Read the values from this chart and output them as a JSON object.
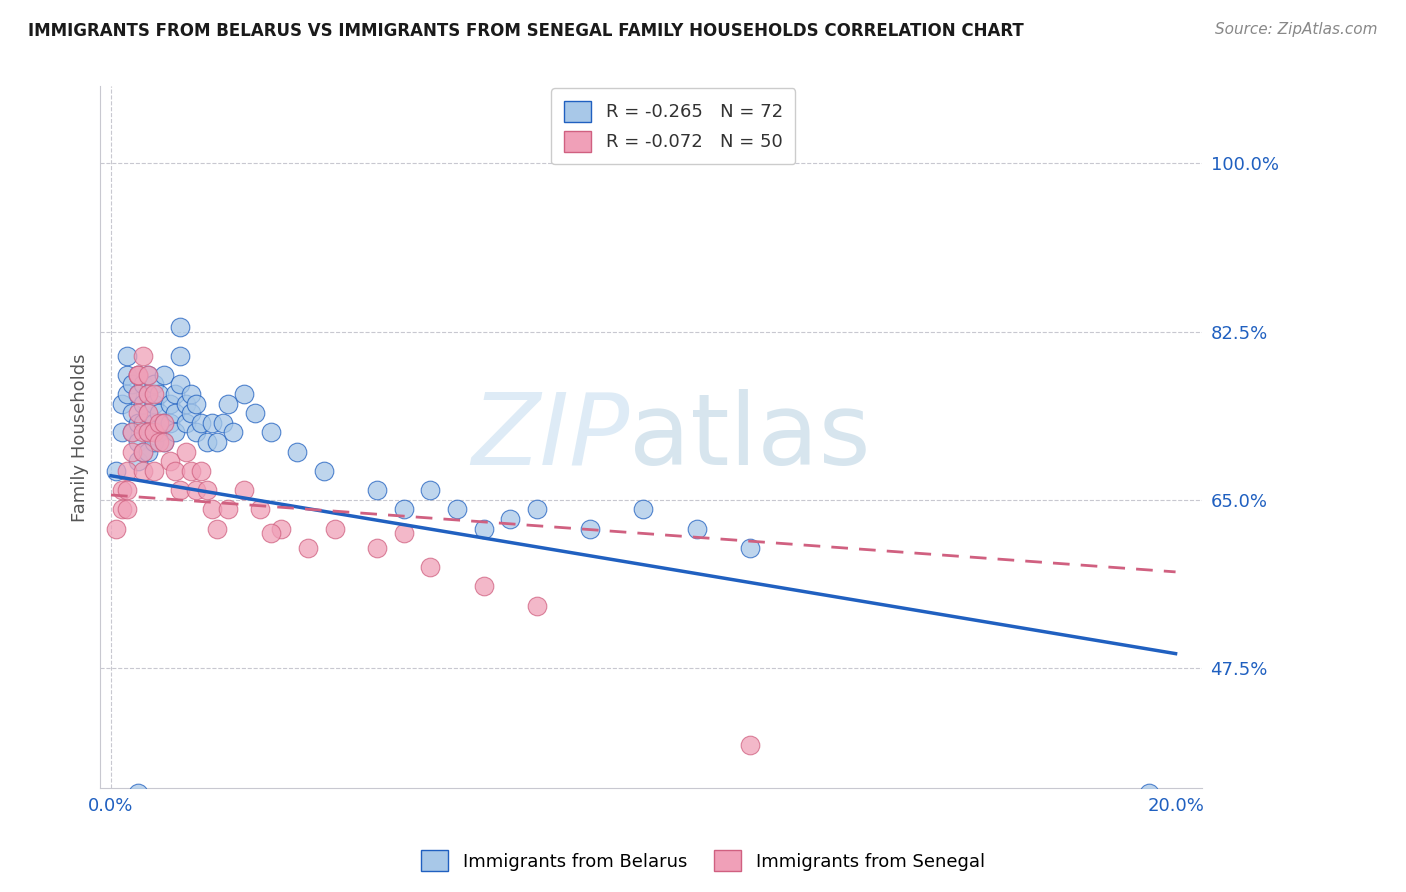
{
  "title": "IMMIGRANTS FROM BELARUS VS IMMIGRANTS FROM SENEGAL FAMILY HOUSEHOLDS CORRELATION CHART",
  "source": "Source: ZipAtlas.com",
  "ylabel": "Family Households",
  "right_ytick_values": [
    0.475,
    0.65,
    0.825,
    1.0
  ],
  "right_ytick_labels": [
    "47.5%",
    "65.0%",
    "82.5%",
    "100.0%"
  ],
  "ylim": [
    0.35,
    1.08
  ],
  "xlim": [
    -0.002,
    0.205
  ],
  "legend_r_belarus": "-0.265",
  "legend_n_belarus": "72",
  "legend_r_senegal": "-0.072",
  "legend_n_senegal": "50",
  "color_belarus": "#a8c8e8",
  "color_senegal": "#f0a0b8",
  "color_trendline_belarus": "#2060c0",
  "color_trendline_senegal": "#d06080",
  "belarus_x": [
    0.001,
    0.002,
    0.002,
    0.003,
    0.003,
    0.003,
    0.004,
    0.004,
    0.004,
    0.005,
    0.005,
    0.005,
    0.005,
    0.005,
    0.006,
    0.006,
    0.006,
    0.006,
    0.007,
    0.007,
    0.007,
    0.007,
    0.007,
    0.008,
    0.008,
    0.008,
    0.008,
    0.009,
    0.009,
    0.009,
    0.01,
    0.01,
    0.01,
    0.011,
    0.011,
    0.012,
    0.012,
    0.012,
    0.013,
    0.013,
    0.013,
    0.014,
    0.014,
    0.015,
    0.015,
    0.016,
    0.016,
    0.017,
    0.018,
    0.019,
    0.02,
    0.021,
    0.022,
    0.023,
    0.025,
    0.027,
    0.03,
    0.035,
    0.04,
    0.05,
    0.055,
    0.06,
    0.065,
    0.07,
    0.075,
    0.08,
    0.09,
    0.1,
    0.11,
    0.12,
    0.005,
    0.195
  ],
  "belarus_y": [
    0.68,
    0.72,
    0.75,
    0.76,
    0.78,
    0.8,
    0.74,
    0.77,
    0.72,
    0.76,
    0.78,
    0.73,
    0.71,
    0.69,
    0.75,
    0.73,
    0.7,
    0.77,
    0.74,
    0.72,
    0.76,
    0.78,
    0.7,
    0.75,
    0.73,
    0.71,
    0.77,
    0.74,
    0.72,
    0.76,
    0.73,
    0.71,
    0.78,
    0.75,
    0.73,
    0.76,
    0.74,
    0.72,
    0.83,
    0.8,
    0.77,
    0.75,
    0.73,
    0.76,
    0.74,
    0.72,
    0.75,
    0.73,
    0.71,
    0.73,
    0.71,
    0.73,
    0.75,
    0.72,
    0.76,
    0.74,
    0.72,
    0.7,
    0.68,
    0.66,
    0.64,
    0.66,
    0.64,
    0.62,
    0.63,
    0.64,
    0.62,
    0.64,
    0.62,
    0.6,
    0.345,
    0.345
  ],
  "senegal_x": [
    0.001,
    0.002,
    0.002,
    0.003,
    0.003,
    0.003,
    0.004,
    0.004,
    0.005,
    0.005,
    0.005,
    0.006,
    0.006,
    0.006,
    0.007,
    0.007,
    0.007,
    0.008,
    0.008,
    0.009,
    0.009,
    0.01,
    0.01,
    0.011,
    0.012,
    0.013,
    0.014,
    0.015,
    0.016,
    0.017,
    0.018,
    0.019,
    0.02,
    0.022,
    0.025,
    0.028,
    0.032,
    0.037,
    0.042,
    0.05,
    0.06,
    0.07,
    0.08,
    0.005,
    0.006,
    0.007,
    0.008,
    0.055,
    0.03,
    0.12
  ],
  "senegal_y": [
    0.62,
    0.66,
    0.64,
    0.68,
    0.66,
    0.64,
    0.72,
    0.7,
    0.76,
    0.74,
    0.78,
    0.72,
    0.7,
    0.68,
    0.74,
    0.72,
    0.76,
    0.72,
    0.68,
    0.73,
    0.71,
    0.73,
    0.71,
    0.69,
    0.68,
    0.66,
    0.7,
    0.68,
    0.66,
    0.68,
    0.66,
    0.64,
    0.62,
    0.64,
    0.66,
    0.64,
    0.62,
    0.6,
    0.62,
    0.6,
    0.58,
    0.56,
    0.54,
    0.78,
    0.8,
    0.78,
    0.76,
    0.615,
    0.615,
    0.395
  ]
}
